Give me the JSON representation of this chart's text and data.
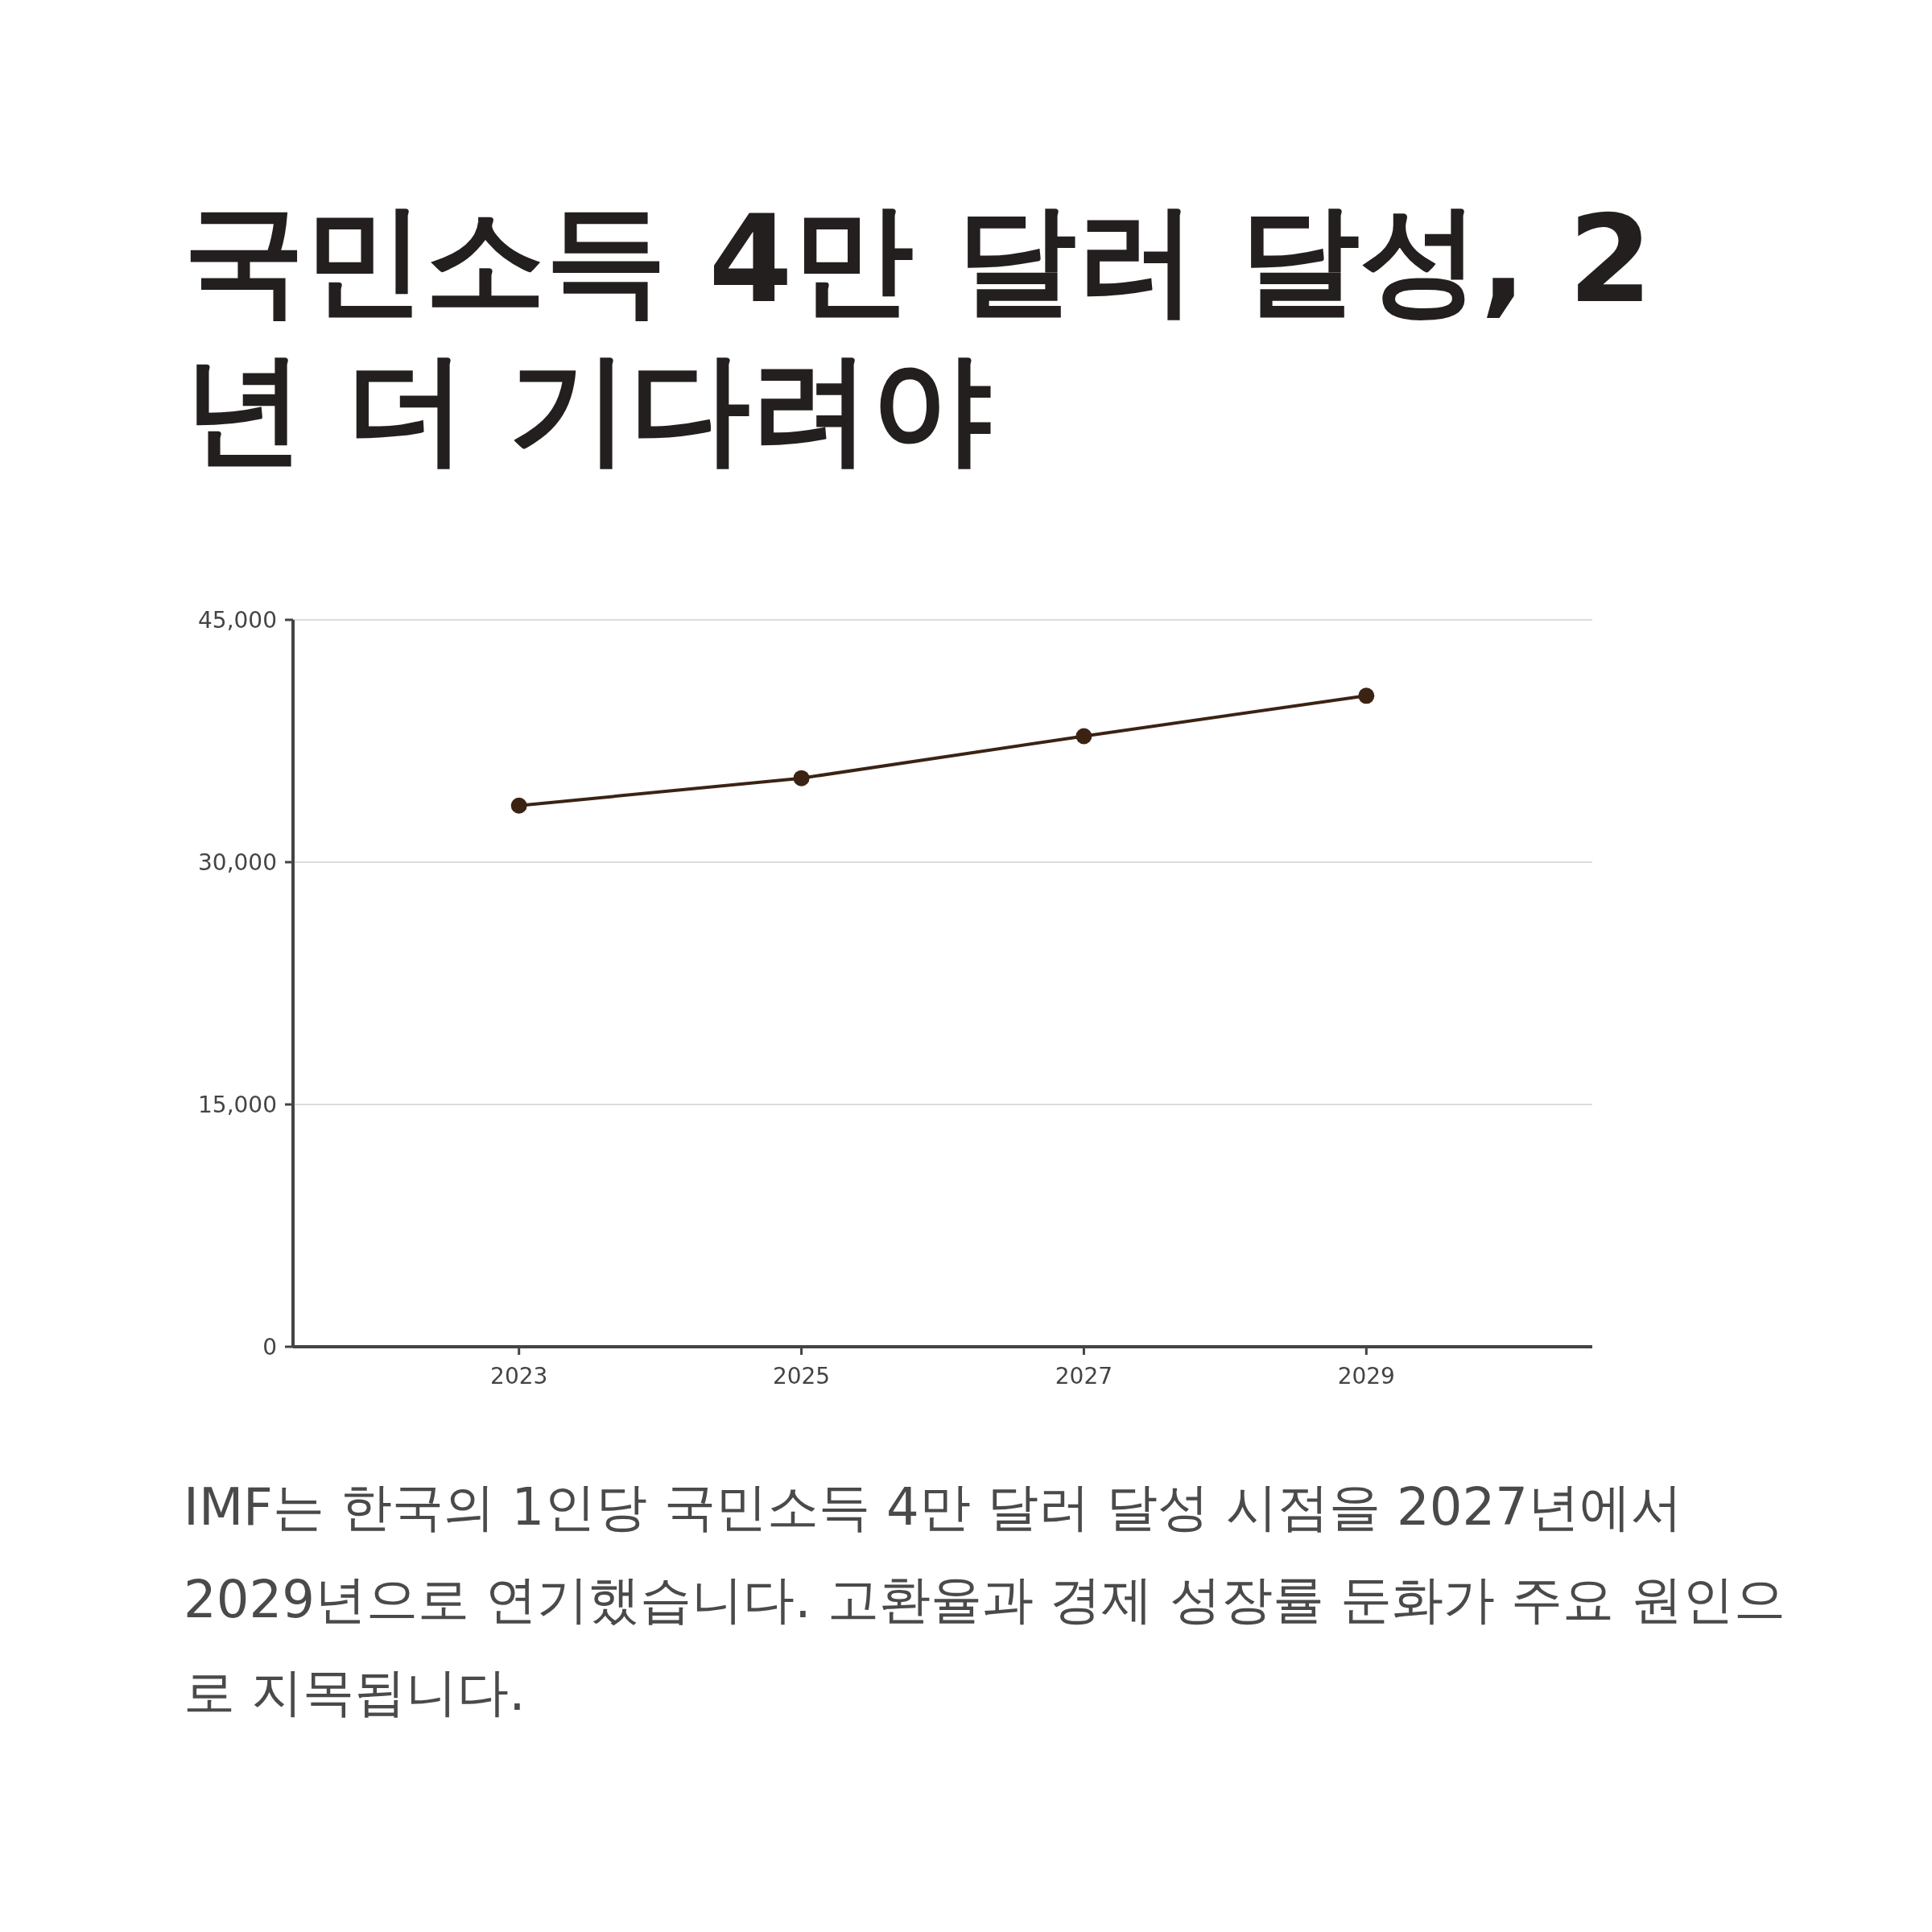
{
  "chart_data": {
    "type": "line",
    "title": "국민소득 4만 달러 달성, 2년 더 기다려야",
    "x": [
      2023,
      2025,
      2027,
      2029
    ],
    "series": [
      {
        "color": "#3b2314",
        "values": [
          33500,
          35200,
          37800,
          40300
        ]
      }
    ],
    "xlim": [
      2021.4,
      2030.6
    ],
    "xticks": [
      2023,
      2025,
      2027,
      2029
    ],
    "ylim": [
      0,
      45000
    ],
    "yticks": [
      {
        "value": 0,
        "label": "0"
      },
      {
        "value": 15000,
        "label": "15,000"
      },
      {
        "value": 30000,
        "label": "30,000"
      },
      {
        "value": 45000,
        "label": "45,000"
      }
    ],
    "grid": "y",
    "marker": "circle",
    "line_style": "solid",
    "annotations": [
      "IMF는 한국의 1인당 국민소득 4만 달러 달성 시점을 2027년에서 2029년으로 연기했습니다. 고환율과 경제 성장률 둔화가 주요 원인으로 지목됩니다."
    ]
  }
}
